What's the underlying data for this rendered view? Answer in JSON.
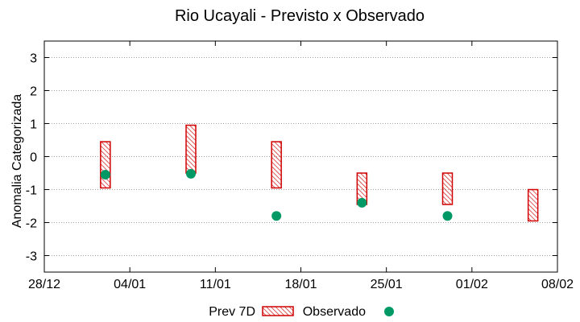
{
  "chart_data": {
    "type": "interval-scatter",
    "title": "Rio Ucayali - Previsto x Observado",
    "ylabel": "Anomalia Categorizada",
    "xlabel": "",
    "ylim": [
      -3.5,
      3.5
    ],
    "yticks": [
      -3,
      -2,
      -1,
      0,
      1,
      2,
      3
    ],
    "xlim_days": [
      0,
      42
    ],
    "xticks": [
      {
        "day": 0,
        "label": "28/12"
      },
      {
        "day": 7,
        "label": "04/01"
      },
      {
        "day": 14,
        "label": "11/01"
      },
      {
        "day": 21,
        "label": "18/01"
      },
      {
        "day": 28,
        "label": "25/01"
      },
      {
        "day": 35,
        "label": "01/02"
      },
      {
        "day": 42,
        "label": "08/02"
      }
    ],
    "grid": true,
    "legend_position": "bottom",
    "series": [
      {
        "name": "Prev 7D",
        "kind": "range",
        "color": "#d00000",
        "points": [
          {
            "day": 5,
            "low": -0.95,
            "high": 0.45
          },
          {
            "day": 12,
            "low": -0.5,
            "high": 0.95
          },
          {
            "day": 19,
            "low": -0.95,
            "high": 0.45
          },
          {
            "day": 26,
            "low": -1.45,
            "high": -0.5
          },
          {
            "day": 33,
            "low": -1.45,
            "high": -0.5
          },
          {
            "day": 40,
            "low": -1.95,
            "high": -1.0
          }
        ]
      },
      {
        "name": "Observado",
        "kind": "point",
        "color": "#009966",
        "points": [
          {
            "day": 5,
            "value": -0.55
          },
          {
            "day": 12,
            "value": -0.52
          },
          {
            "day": 19,
            "value": -1.8
          },
          {
            "day": 26,
            "value": -1.4
          },
          {
            "day": 33,
            "value": -1.8
          }
        ]
      }
    ]
  }
}
